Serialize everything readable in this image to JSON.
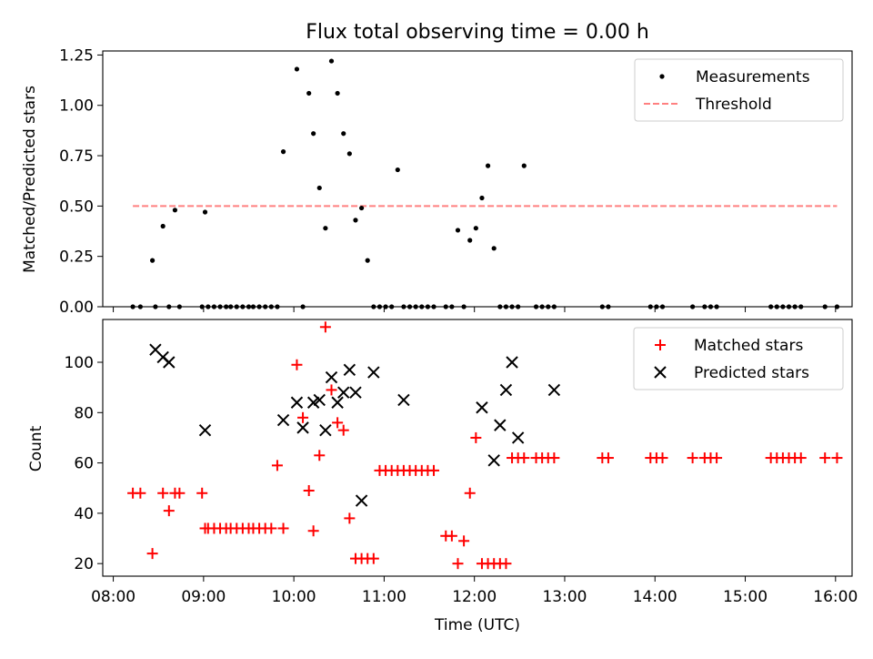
{
  "chart_data": [
    {
      "type": "scatter",
      "title": "Flux total observing time = 0.00 h",
      "ylabel": "Matched/Predicted stars",
      "xlim": [
        "07:53",
        "16:11"
      ],
      "ylim": [
        0,
        1.27
      ],
      "yticks": [
        "0.00",
        "0.25",
        "0.50",
        "0.75",
        "1.00",
        "1.25"
      ],
      "legend_position": "top-right",
      "series": [
        {
          "name": "Measurements",
          "kind": "dot",
          "color": "#000000",
          "x": [
            "08:13",
            "08:18",
            "08:26",
            "08:28",
            "08:33",
            "08:37",
            "08:41",
            "08:44",
            "08:59",
            "09:01",
            "09:03",
            "09:07",
            "09:11",
            "09:15",
            "09:18",
            "09:22",
            "09:26",
            "09:30",
            "09:33",
            "09:37",
            "09:41",
            "09:45",
            "09:49",
            "09:53",
            "10:02",
            "10:06",
            "10:10",
            "10:13",
            "10:17",
            "10:21",
            "10:25",
            "10:29",
            "10:33",
            "10:37",
            "10:41",
            "10:45",
            "10:49",
            "10:53",
            "10:57",
            "11:01",
            "11:05",
            "11:09",
            "11:13",
            "11:17",
            "11:21",
            "11:25",
            "11:29",
            "11:33",
            "11:41",
            "11:45",
            "11:49",
            "11:53",
            "11:57",
            "12:01",
            "12:05",
            "12:09",
            "12:13",
            "12:17",
            "12:21",
            "12:25",
            "12:29",
            "12:33",
            "12:41",
            "12:45",
            "12:49",
            "12:53",
            "13:25",
            "13:29",
            "13:57",
            "14:01",
            "14:05",
            "14:25",
            "14:33",
            "14:37",
            "14:41",
            "15:17",
            "15:21",
            "15:25",
            "15:29",
            "15:33",
            "15:37",
            "15:53",
            "16:01"
          ],
          "y": [
            0,
            0,
            0.23,
            0,
            0.4,
            0,
            0.48,
            0,
            0,
            0.47,
            0,
            0,
            0,
            0,
            0,
            0,
            0,
            0,
            0,
            0,
            0,
            0,
            0,
            0.77,
            1.18,
            0,
            1.06,
            0.86,
            0.59,
            0.39,
            1.22,
            1.06,
            0.86,
            0.76,
            0.43,
            0.49,
            0.23,
            0,
            0,
            0,
            0,
            0.68,
            0,
            0,
            0,
            0,
            0,
            0,
            0,
            0,
            0.38,
            0,
            0.33,
            0.39,
            0.54,
            0.7,
            0.29,
            0,
            0,
            0,
            0,
            0.7,
            0,
            0,
            0,
            0,
            0,
            0,
            0,
            0,
            0,
            0,
            0,
            0,
            0,
            0,
            0,
            0,
            0,
            0,
            0,
            0,
            0
          ]
        },
        {
          "name": "Threshold",
          "kind": "dashed-line",
          "color": "#ff8080",
          "x": [
            "08:13",
            "16:01"
          ],
          "y": [
            0.5,
            0.5
          ]
        }
      ]
    },
    {
      "type": "scatter",
      "xlabel": "Time (UTC)",
      "ylabel": "Count",
      "xlim": [
        "07:53",
        "16:11"
      ],
      "ylim": [
        15,
        117
      ],
      "yticks": [
        "20",
        "40",
        "60",
        "80",
        "100"
      ],
      "xticks": [
        "08:00",
        "09:00",
        "10:00",
        "11:00",
        "12:00",
        "13:00",
        "14:00",
        "15:00",
        "16:00"
      ],
      "legend_position": "top-right",
      "series": [
        {
          "name": "Matched stars",
          "kind": "plus",
          "color": "#ff0000",
          "x": [
            "08:13",
            "08:18",
            "08:26",
            "08:33",
            "08:37",
            "08:41",
            "08:44",
            "08:59",
            "09:01",
            "09:03",
            "09:07",
            "09:11",
            "09:15",
            "09:18",
            "09:22",
            "09:26",
            "09:30",
            "09:33",
            "09:37",
            "09:41",
            "09:45",
            "09:49",
            "09:53",
            "10:02",
            "10:06",
            "10:10",
            "10:13",
            "10:17",
            "10:21",
            "10:25",
            "10:29",
            "10:33",
            "10:37",
            "10:41",
            "10:45",
            "10:49",
            "10:53",
            "10:57",
            "11:01",
            "11:05",
            "11:09",
            "11:13",
            "11:17",
            "11:21",
            "11:25",
            "11:29",
            "11:33",
            "11:41",
            "11:45",
            "11:49",
            "11:53",
            "11:57",
            "12:01",
            "12:05",
            "12:09",
            "12:13",
            "12:17",
            "12:21",
            "12:25",
            "12:29",
            "12:33",
            "12:41",
            "12:45",
            "12:49",
            "12:53",
            "13:25",
            "13:29",
            "13:57",
            "14:01",
            "14:05",
            "14:25",
            "14:33",
            "14:37",
            "14:41",
            "15:17",
            "15:21",
            "15:25",
            "15:29",
            "15:33",
            "15:37",
            "15:53",
            "16:01"
          ],
          "y": [
            48,
            48,
            24,
            48,
            41,
            48,
            48,
            48,
            34,
            34,
            34,
            34,
            34,
            34,
            34,
            34,
            34,
            34,
            34,
            34,
            34,
            59,
            34,
            99,
            78,
            49,
            33,
            63,
            114,
            89,
            76,
            73,
            38,
            22,
            22,
            22,
            22,
            57,
            57,
            57,
            57,
            57,
            57,
            57,
            57,
            57,
            57,
            31,
            31,
            20,
            29,
            48,
            70,
            20,
            20,
            20,
            20,
            20,
            62,
            62,
            62,
            62,
            62,
            62,
            62,
            62,
            62,
            62,
            62,
            62,
            62,
            62,
            62,
            62,
            62,
            62,
            62,
            62,
            62,
            62,
            62,
            62
          ]
        },
        {
          "name": "Predicted stars",
          "kind": "x",
          "color": "#000000",
          "x": [
            "08:28",
            "08:33",
            "08:37",
            "09:01",
            "09:53",
            "10:02",
            "10:06",
            "10:13",
            "10:17",
            "10:21",
            "10:25",
            "10:29",
            "10:33",
            "10:37",
            "10:41",
            "10:45",
            "10:53",
            "11:13",
            "12:05",
            "12:13",
            "12:17",
            "12:21",
            "12:25",
            "12:29",
            "12:53"
          ],
          "y": [
            105,
            102,
            100,
            73,
            77,
            84,
            74,
            84,
            85,
            73,
            94,
            84,
            88,
            97,
            88,
            45,
            96,
            85,
            82,
            61,
            75,
            89,
            100,
            70,
            89
          ]
        }
      ]
    }
  ]
}
